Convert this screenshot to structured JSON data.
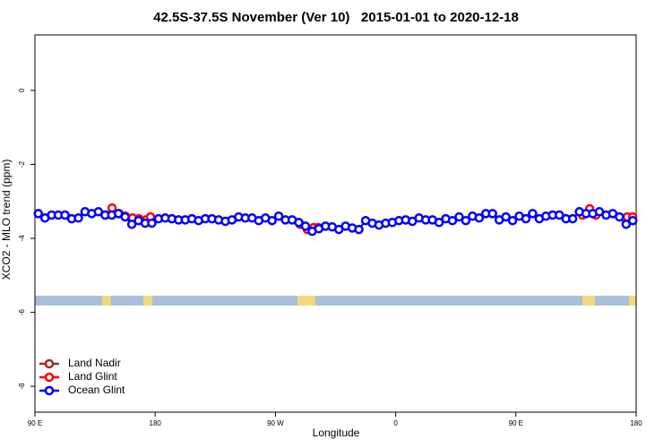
{
  "chart_data": {
    "type": "line",
    "title": "42.5S-37.5S November (Ver 10)   2015-01-01 to 2020-12-18",
    "x_label": "Longitude",
    "y_label": "XCO2 - MLO trend (ppm)",
    "xlim": [
      90,
      540
    ],
    "ylim": [
      -8.7,
      1.5
    ],
    "xticks": [
      {
        "value": 90,
        "label": "90 E"
      },
      180,
      {
        "value": 270,
        "label": "90 W"
      },
      {
        "value": 360,
        "label": "0"
      },
      {
        "value": 450,
        "label": "90 E"
      },
      {
        "value": 540,
        "label": "180"
      }
    ],
    "yticks": [
      0,
      -2,
      -4,
      -6,
      -8
    ],
    "legend": "bottom-left",
    "series": [
      {
        "name": "Land Nadir",
        "color": "#a0282d",
        "x": [],
        "values": []
      },
      {
        "name": "Land Glint",
        "color": "#ff0000",
        "x": [
          143.0,
          147.7,
          153.0,
          157.7,
          163.1,
          167.8,
          173.2,
          176.5,
          null,
          288.5,
          293.9,
          298.6,
          302.0,
          null,
          499.8,
          505.2,
          509.9,
          null,
          533.3,
          537.4
        ],
        "values": [
          -3.37,
          -3.18,
          -3.33,
          -3.4,
          -3.45,
          -3.47,
          -3.5,
          -3.42,
          null,
          -3.62,
          -3.76,
          -3.71,
          -3.71,
          null,
          -3.37,
          -3.2,
          -3.37,
          null,
          -3.42,
          -3.42
        ]
      },
      {
        "name": "Ocean Glint",
        "color": "#0000ff",
        "x": [
          92.5,
          97.5,
          102.5,
          107.5,
          112.5,
          117.5,
          122.5,
          127.5,
          132.5,
          137.5,
          142.5,
          147.5,
          152.5,
          157.5,
          162.5,
          167.5,
          172.5,
          177.5,
          182.5,
          187.5,
          192.5,
          197.5,
          202.5,
          207.5,
          212.5,
          217.5,
          222.5,
          227.5,
          232.5,
          237.5,
          242.5,
          247.5,
          252.5,
          257.5,
          262.5,
          267.5,
          272.5,
          277.5,
          282.5,
          287.5,
          292.5,
          297.5,
          302.5,
          307.5,
          312.5,
          317.5,
          322.5,
          327.5,
          332.5,
          337.5,
          342.5,
          347.5,
          352.5,
          357.5,
          362.5,
          367.5,
          372.5,
          377.5,
          382.5,
          387.5,
          392.5,
          397.5,
          402.5,
          407.5,
          412.5,
          417.5,
          422.5,
          427.5,
          432.5,
          437.5,
          442.5,
          447.5,
          452.5,
          457.5,
          462.5,
          467.5,
          472.5,
          477.5,
          482.5,
          487.5,
          492.5,
          497.5,
          502.5,
          507.5,
          512.5,
          517.5,
          522.5,
          527.5,
          532.5,
          537.5
        ],
        "values": [
          -3.33,
          -3.45,
          -3.37,
          -3.37,
          -3.37,
          -3.47,
          -3.45,
          -3.28,
          -3.33,
          -3.28,
          -3.37,
          -3.37,
          -3.33,
          -3.42,
          -3.62,
          -3.52,
          -3.59,
          -3.59,
          -3.47,
          -3.45,
          -3.47,
          -3.5,
          -3.5,
          -3.47,
          -3.52,
          -3.47,
          -3.47,
          -3.5,
          -3.54,
          -3.5,
          -3.42,
          -3.45,
          -3.45,
          -3.52,
          -3.45,
          -3.52,
          -3.4,
          -3.5,
          -3.5,
          -3.57,
          -3.67,
          -3.81,
          -3.74,
          -3.67,
          -3.69,
          -3.76,
          -3.67,
          -3.72,
          -3.76,
          -3.52,
          -3.59,
          -3.64,
          -3.59,
          -3.57,
          -3.52,
          -3.5,
          -3.54,
          -3.45,
          -3.5,
          -3.5,
          -3.57,
          -3.47,
          -3.52,
          -3.42,
          -3.52,
          -3.4,
          -3.45,
          -3.33,
          -3.33,
          -3.5,
          -3.42,
          -3.52,
          -3.4,
          -3.47,
          -3.33,
          -3.47,
          -3.4,
          -3.37,
          -3.37,
          -3.47,
          -3.47,
          -3.28,
          -3.33,
          -3.33,
          -3.28,
          -3.37,
          -3.33,
          -3.42,
          -3.62,
          -3.52
        ]
      }
    ]
  }
}
